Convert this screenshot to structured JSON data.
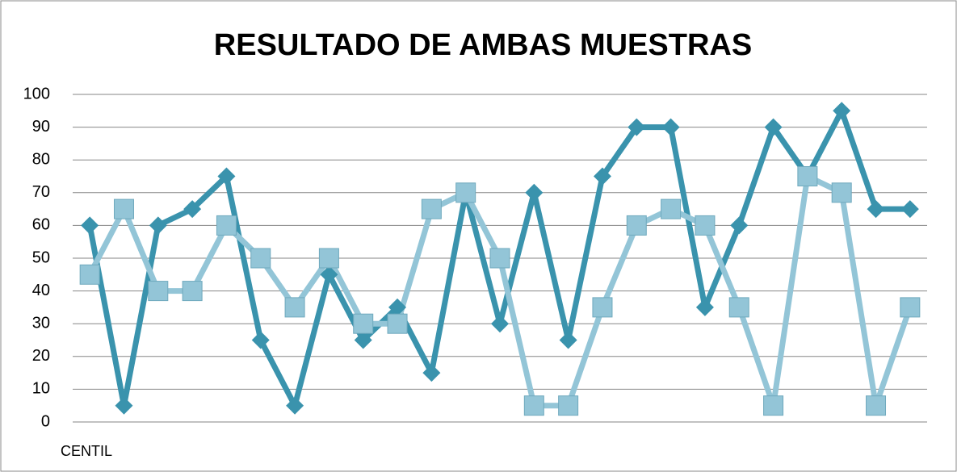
{
  "chart_data": {
    "type": "line",
    "title": "RESULTADO DE AMBAS MUESTRAS",
    "x_label": "CENTIL",
    "categories": [
      null,
      null,
      null,
      null,
      null,
      null,
      null,
      null,
      null,
      null,
      null,
      null,
      null,
      null,
      null,
      null,
      null,
      null,
      null,
      null,
      null,
      null,
      null,
      null,
      null
    ],
    "series": [
      {
        "color": "#3a93ad",
        "marker": "diamond",
        "values": [
          60,
          5,
          60,
          65,
          75,
          25,
          5,
          45,
          25,
          35,
          15,
          70,
          30,
          70,
          25,
          75,
          90,
          90,
          35,
          60,
          90,
          75,
          95,
          65,
          65
        ]
      },
      {
        "color": "#93c5d7",
        "marker": "square",
        "values": [
          45,
          65,
          40,
          40,
          60,
          50,
          35,
          50,
          30,
          30,
          65,
          70,
          50,
          5,
          5,
          35,
          60,
          65,
          60,
          35,
          5,
          75,
          70,
          5,
          35
        ]
      }
    ],
    "ylim": [
      0,
      100
    ],
    "yticks": [
      0,
      10,
      20,
      30,
      40,
      50,
      60,
      70,
      80,
      90,
      100
    ],
    "grid": true
  }
}
